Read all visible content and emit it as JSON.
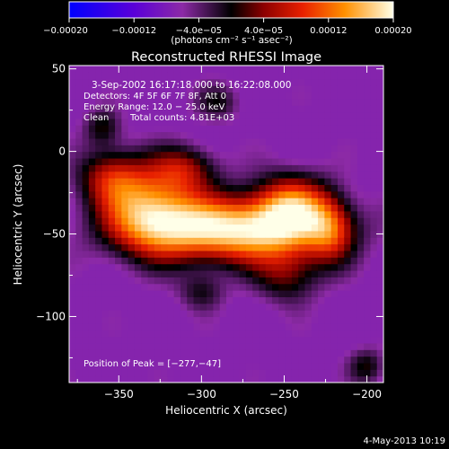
{
  "chart_data": {
    "type": "heatmap",
    "title": "Reconstructed RHESSI Image",
    "xlabel": "Heliocentric X (arcsec)",
    "ylabel": "Heliocentric Y (arcsec)",
    "xlim": [
      -380,
      -190
    ],
    "ylim": [
      -140,
      52
    ],
    "x_ticks": [
      -350,
      -300,
      -250,
      -200
    ],
    "x_tick_labels": [
      "−350",
      "−300",
      "−250",
      "−200"
    ],
    "y_ticks": [
      50,
      0,
      -50,
      -100
    ],
    "y_tick_labels": [
      "50",
      "0",
      "−50",
      "−100"
    ],
    "colorbar": {
      "min": -0.0002,
      "max": 0.0002,
      "tick_values": [
        -0.0002,
        -0.00012,
        -4e-05,
        4e-05,
        0.00012,
        0.0002
      ],
      "tick_labels": [
        "−0.00020",
        "−0.00012",
        "−4.0e−05",
        "4.0e−05",
        "0.00012",
        "0.00020"
      ],
      "units_label": "(photons cm⁻² s⁻¹ asec⁻²)"
    },
    "annotations": {
      "time_range": "3-Sep-2002 16:17:18.000 to 16:22:08.000",
      "detectors": "Detectors: 4F 5F 6F 7F 8F, Att 0",
      "energy_range": "Energy Range: 12.0 − 25.0 keV",
      "algorithm": "Clean",
      "total_counts": "Total counts: 4.81E+03",
      "peak_position": "Position of Peak = [−277,−47]"
    },
    "sources": [
      {
        "x": -280,
        "y": -47,
        "sx": 40,
        "sy": 14,
        "amp": 1.0
      },
      {
        "x": -332,
        "y": -35,
        "sx": 20,
        "sy": 18,
        "amp": 0.7
      },
      {
        "x": -245,
        "y": -32,
        "sx": 16,
        "sy": 14,
        "amp": 0.6
      },
      {
        "x": -355,
        "y": -15,
        "sx": 14,
        "sy": 12,
        "amp": 0.45
      },
      {
        "x": -310,
        "y": -10,
        "sx": 14,
        "sy": 10,
        "amp": 0.4
      },
      {
        "x": -248,
        "y": -75,
        "sx": 14,
        "sy": 12,
        "amp": 0.35
      },
      {
        "x": -222,
        "y": -48,
        "sx": 10,
        "sy": 14,
        "amp": 0.4
      },
      {
        "x": -360,
        "y": 15,
        "sx": 8,
        "sy": 8,
        "amp": 0.3
      },
      {
        "x": -290,
        "y": 30,
        "sx": 10,
        "sy": 8,
        "amp": 0.25
      },
      {
        "x": -300,
        "y": -85,
        "sx": 10,
        "sy": 8,
        "amp": 0.25
      },
      {
        "x": -200,
        "y": -130,
        "sx": 8,
        "sy": 8,
        "amp": 0.3
      }
    ]
  },
  "footer": {
    "date_stamp": "4-May-2013 10:19"
  }
}
